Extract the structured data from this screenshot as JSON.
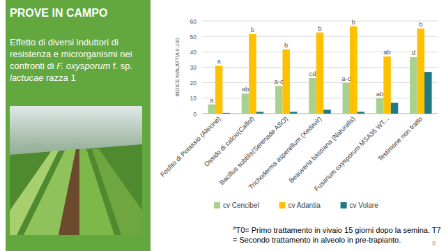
{
  "slide": {
    "title": "PROVE IN CAMPO",
    "subtitle_parts": [
      "Effetto di diversi induttori di resistenza e microrganismi nei confronti di ",
      "F. oxysporum",
      " f. sp. ",
      "lactucae",
      " razza 1"
    ],
    "footnote_mark": "a",
    "footnote": "T0= Primo trattamento in vivaio 15 giorni dopo la semina. T7 = Secondo trattamento in alveolo in pre-trapianto.",
    "page": "8"
  },
  "chart_data": {
    "type": "bar",
    "y_label": "INDICE MALATTIA 0-100",
    "categories": [
      "Fosfito di Potassio (Alexine)",
      "Ossido di calcio(Calfol)",
      "Bacillus subtilis(Serenade ASO)",
      "Trichoderma asperellum (Xedavir)",
      "Beauveria bassiana (Naturalis)",
      "Fusarium oxysporum MSA35 WT...",
      "Testimone  non tratto"
    ],
    "series": [
      {
        "name": "cv Cencibel",
        "color": "#a9d18e",
        "values": [
          6,
          13,
          18,
          23,
          20,
          10,
          36.5
        ],
        "annotations": [
          "a",
          "ab",
          "a-c",
          "cd",
          "a-c",
          "ab",
          "d"
        ]
      },
      {
        "name": "cv Adantia",
        "color": "#ffc000",
        "values": [
          31,
          51.5,
          41.5,
          52.5,
          56.5,
          37,
          55
        ],
        "annotations": [
          "a",
          "b",
          "b",
          "b",
          "b",
          "ab",
          "b"
        ]
      },
      {
        "name": "cv Volare",
        "color": "#1f7a86",
        "values": [
          0.5,
          1.2,
          1.2,
          2.5,
          1.2,
          7,
          27
        ]
      }
    ],
    "ylim": [
      0,
      60
    ],
    "yticks": [
      0,
      10,
      20,
      30,
      40,
      50,
      60
    ],
    "grid": true,
    "legend": "bottom"
  }
}
